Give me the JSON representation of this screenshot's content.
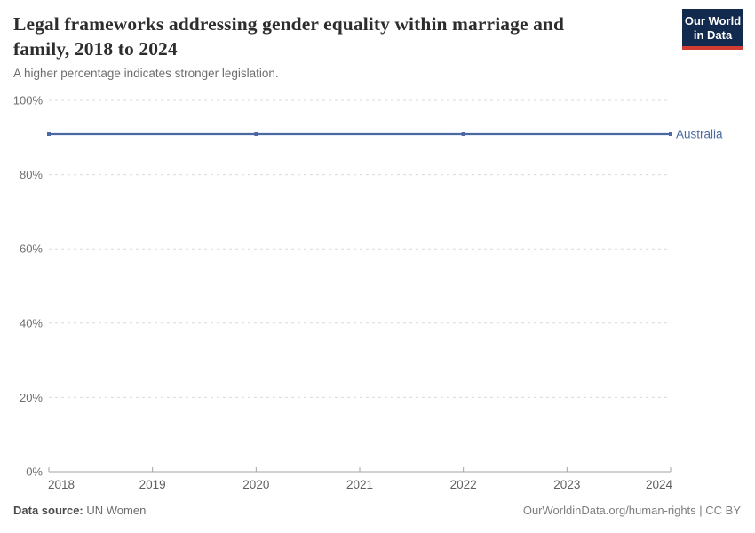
{
  "header": {
    "title": "Legal frameworks addressing gender equality within marriage and family, 2018 to 2024",
    "title_lines": [
      "Legal frameworks addressing gender equality within marriage and",
      "family, 2018 to 2024"
    ],
    "subtitle": "A higher percentage indicates stronger legislation.",
    "logo": {
      "line1": "Our World",
      "line2": "in Data",
      "bg_color": "#122a4e",
      "accent_color": "#d13d33"
    }
  },
  "chart_data": {
    "type": "line",
    "title": "Legal frameworks addressing gender equality within marriage and family, 2018 to 2024",
    "xlabel": "",
    "ylabel": "",
    "xlim": [
      2018,
      2024
    ],
    "ylim": [
      0,
      100
    ],
    "grid": "horizontal-dashed",
    "legend_position": "inline-right-of-line",
    "xticks": [
      {
        "value": 2018,
        "label": "2018"
      },
      {
        "value": 2019,
        "label": "2019"
      },
      {
        "value": 2020,
        "label": "2020"
      },
      {
        "value": 2021,
        "label": "2021"
      },
      {
        "value": 2022,
        "label": "2022"
      },
      {
        "value": 2023,
        "label": "2023"
      },
      {
        "value": 2024,
        "label": "2024"
      }
    ],
    "yticks": [
      {
        "value": 0,
        "label": "0%"
      },
      {
        "value": 20,
        "label": "20%"
      },
      {
        "value": 40,
        "label": "40%"
      },
      {
        "value": 60,
        "label": "60%"
      },
      {
        "value": 80,
        "label": "80%"
      },
      {
        "value": 100,
        "label": "100%"
      }
    ],
    "series": [
      {
        "name": "Australia",
        "color": "#4a68a2",
        "x": [
          2018,
          2020,
          2022,
          2024
        ],
        "values": [
          90.9,
          90.9,
          90.9,
          90.9
        ]
      }
    ]
  },
  "footer": {
    "source_label": "Data source:",
    "source_value": "UN Women",
    "note_right": "OurWorldinData.org/human-rights | CC BY"
  }
}
